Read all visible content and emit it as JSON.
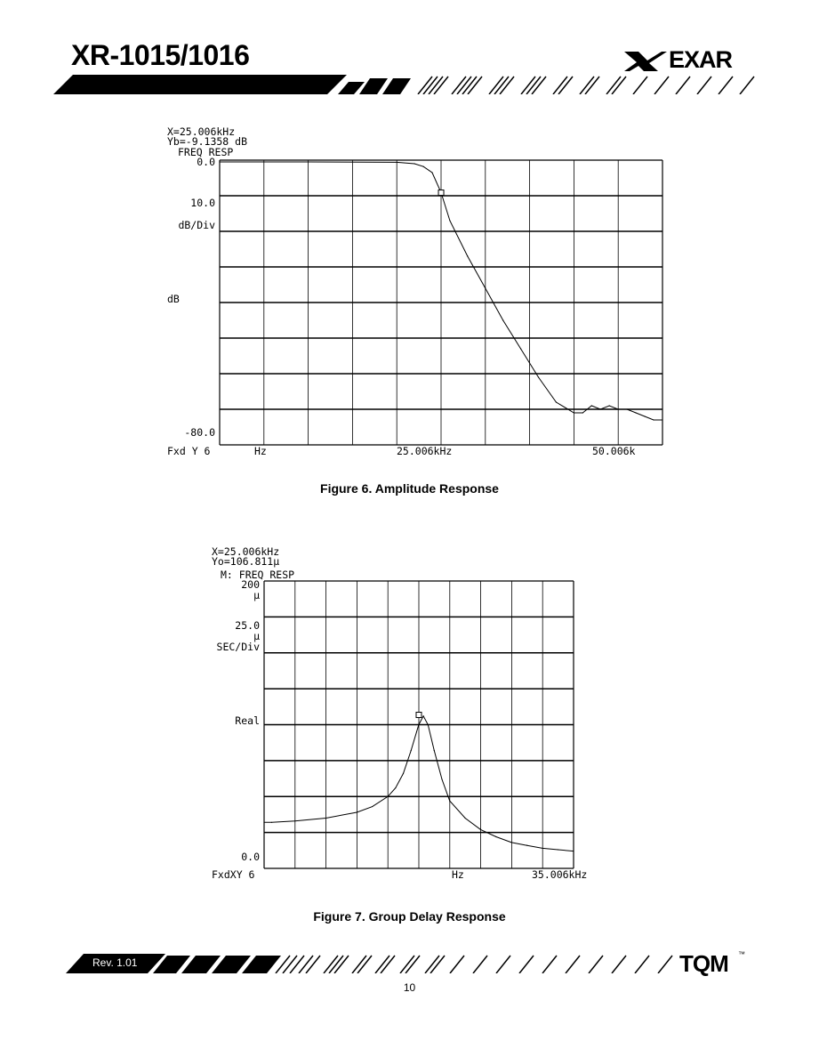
{
  "header": {
    "title": "XR-1015/1016",
    "logo_text": "EXAR"
  },
  "figure6": {
    "caption": "Figure 6.  Amplitude Response",
    "marker_x": "X=25.006kHz",
    "marker_y": "Yb=-9.1358 dB",
    "trace_name": "FREQ RESP",
    "ref_top": "0.0",
    "scale_val": "10.0",
    "scale_unit": "dB/Div",
    "axis_unit": "dB",
    "ref_bottom": "-80.0",
    "x_start": "Fxd Y 6",
    "x_unit": "Hz",
    "x_center": "25.006kHz",
    "x_end": "50.006k",
    "chart_data": {
      "type": "line",
      "x_unit": "kHz",
      "y_unit": "dB",
      "xlim": [
        0,
        50.006
      ],
      "ylim": [
        -80,
        0
      ],
      "marker": {
        "x": 25.006,
        "y": -9.1358
      },
      "x": [
        0,
        10,
        20,
        22,
        23,
        24,
        25,
        26,
        28,
        30,
        32,
        34,
        36,
        38,
        40,
        41,
        42,
        43,
        44,
        45,
        46,
        47,
        48,
        49,
        50
      ],
      "y": [
        -0.5,
        -0.5,
        -0.6,
        -1.0,
        -1.8,
        -3.5,
        -9.1,
        -17,
        -27,
        -36,
        -45,
        -53,
        -61,
        -68,
        -71,
        -71,
        -69,
        -70,
        -69,
        -70,
        -70,
        -71,
        -72,
        -73,
        -73
      ]
    }
  },
  "figure7": {
    "caption": "Figure 7.  Group Delay Response",
    "marker_x": "X=25.006kHz",
    "marker_y": "Yo=106.811μ",
    "trace_name": "M: FREQ RESP",
    "ref_top": "200",
    "ref_top_unit": "μ",
    "scale_val": "25.0",
    "scale_unit_mu": "μ",
    "scale_unit": "SEC/Div",
    "axis_mode": "Real",
    "ref_bottom": "0.0",
    "x_start": "FxdXY 6",
    "x_unit": "Hz",
    "x_end": "35.006kHz",
    "chart_data": {
      "type": "line",
      "x_unit": "kHz",
      "y_unit": "μs",
      "xlim": [
        15.006,
        35.006
      ],
      "ylim": [
        0,
        200
      ],
      "marker": {
        "x": 25.006,
        "y": 106.811
      },
      "x": [
        15.006,
        15.5,
        17,
        19,
        21,
        22,
        23,
        23.5,
        24,
        24.5,
        25,
        25.3,
        25.6,
        26,
        26.5,
        27,
        28,
        29,
        30,
        31,
        32,
        33,
        34,
        35
      ],
      "y": [
        32,
        32,
        33,
        35,
        39,
        43,
        50,
        56,
        66,
        82,
        100,
        106,
        100,
        82,
        62,
        47,
        35,
        27,
        22,
        18,
        16,
        14,
        13,
        12
      ]
    }
  },
  "footer": {
    "rev": "Rev. 1.01",
    "logo_text": "TQM",
    "page_number": "10"
  }
}
